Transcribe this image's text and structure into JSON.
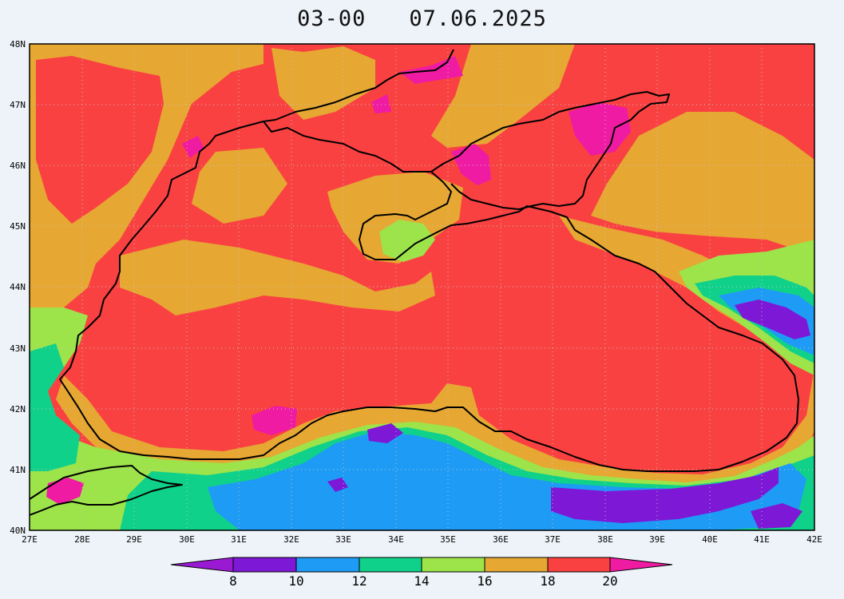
{
  "title": {
    "time": "03-00",
    "date": "07.06.2025"
  },
  "map": {
    "lat_labels": [
      "48N",
      "47N",
      "46N",
      "45N",
      "44N",
      "43N",
      "42N",
      "41N",
      "40N"
    ],
    "lon_labels": [
      "27E",
      "28E",
      "29E",
      "30E",
      "31E",
      "32E",
      "33E",
      "34E",
      "35E",
      "36E",
      "37E",
      "38E",
      "39E",
      "40E",
      "41E",
      "42E"
    ],
    "lat_range": [
      40,
      48
    ],
    "lon_range": [
      27,
      42
    ],
    "grid": "dotted"
  },
  "colorbar": {
    "labels": [
      "8",
      "10",
      "12",
      "14",
      "16",
      "18",
      "20"
    ],
    "bins": [
      {
        "range": "<8",
        "color": "#9a1ad4"
      },
      {
        "range": "8-10",
        "color": "#7d18d6"
      },
      {
        "range": "10-12",
        "color": "#1d9bf5"
      },
      {
        "range": "12-14",
        "color": "#10d18a"
      },
      {
        "range": "14-16",
        "color": "#9de34a"
      },
      {
        "range": "16-18",
        "color": "#e6a733"
      },
      {
        "range": "18-20",
        "color": "#fa4141"
      },
      {
        "range": ">20",
        "color": "#ef1ba3"
      }
    ]
  }
}
